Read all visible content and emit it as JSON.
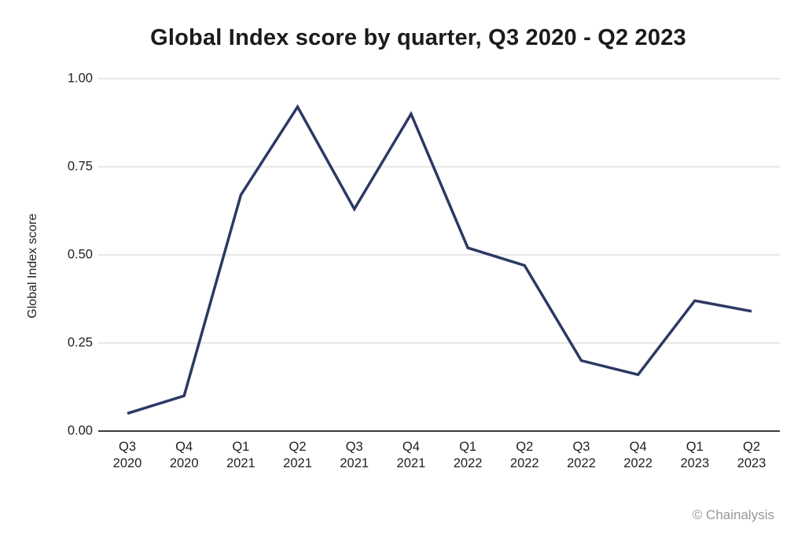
{
  "footer": {
    "attribution": "© Chainalysis"
  },
  "colors": {
    "line": "#2d3964",
    "grid": "#d9d9d9",
    "axis": "#3c3c3c",
    "text": "#1f1f1f",
    "muted": "#97999b",
    "background": "#ffffff"
  },
  "chart_data": {
    "type": "line",
    "title": "Global Index score by quarter, Q3 2020 - Q2 2023",
    "xlabel": "",
    "ylabel": "Global Index score",
    "categories": [
      "Q3 2020",
      "Q4 2020",
      "Q1 2021",
      "Q2 2021",
      "Q3 2021",
      "Q4 2021",
      "Q1 2022",
      "Q2 2022",
      "Q3 2022",
      "Q4 2022",
      "Q1 2023",
      "Q2 2023"
    ],
    "series": [
      {
        "name": "Global Index score",
        "values": [
          0.05,
          0.1,
          0.67,
          0.92,
          0.63,
          0.9,
          0.52,
          0.47,
          0.2,
          0.16,
          0.37,
          0.34
        ]
      }
    ],
    "ylim": [
      0.0,
      1.0
    ],
    "yticks": [
      0.0,
      0.25,
      0.5,
      0.75,
      1.0
    ],
    "ytick_labels": [
      "0.00",
      "0.25",
      "0.50",
      "0.75",
      "1.00"
    ],
    "grid": "horizontal-only",
    "legend": "none",
    "line_width": 3.5
  }
}
